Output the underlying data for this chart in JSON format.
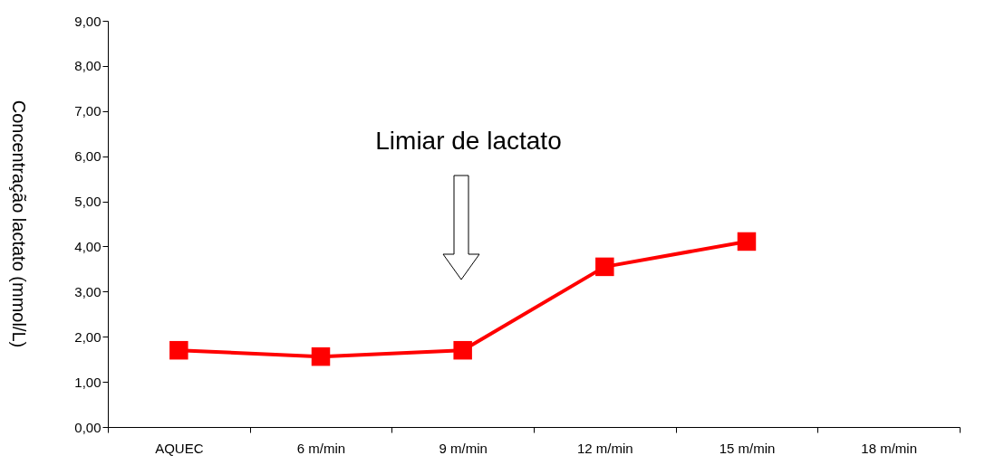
{
  "chart_data": {
    "type": "line",
    "ylabel": "Concentração lactato (mmol/L)",
    "categories": [
      "AQUEC",
      "6 m/min",
      "9 m/min",
      "12 m/min",
      "15 m/min",
      "18 m/min"
    ],
    "series": [
      {
        "color": "#ff0000",
        "values": [
          1.7,
          1.56,
          1.7,
          3.55,
          4.11,
          null
        ]
      }
    ],
    "ylim": [
      0,
      9
    ],
    "yticks": [
      {
        "value": 0,
        "label": "0,00"
      },
      {
        "value": 1,
        "label": "1,00"
      },
      {
        "value": 2,
        "label": "2,00"
      },
      {
        "value": 3,
        "label": "3,00"
      },
      {
        "value": 4,
        "label": "4,00"
      },
      {
        "value": 5,
        "label": "5,00"
      },
      {
        "value": 6,
        "label": "6,00"
      },
      {
        "value": 7,
        "label": "7,00"
      },
      {
        "value": 8,
        "label": "8,00"
      },
      {
        "value": 9,
        "label": "9,00"
      }
    ],
    "annotations": [
      "Limiar de lactato"
    ],
    "marker": "square"
  }
}
